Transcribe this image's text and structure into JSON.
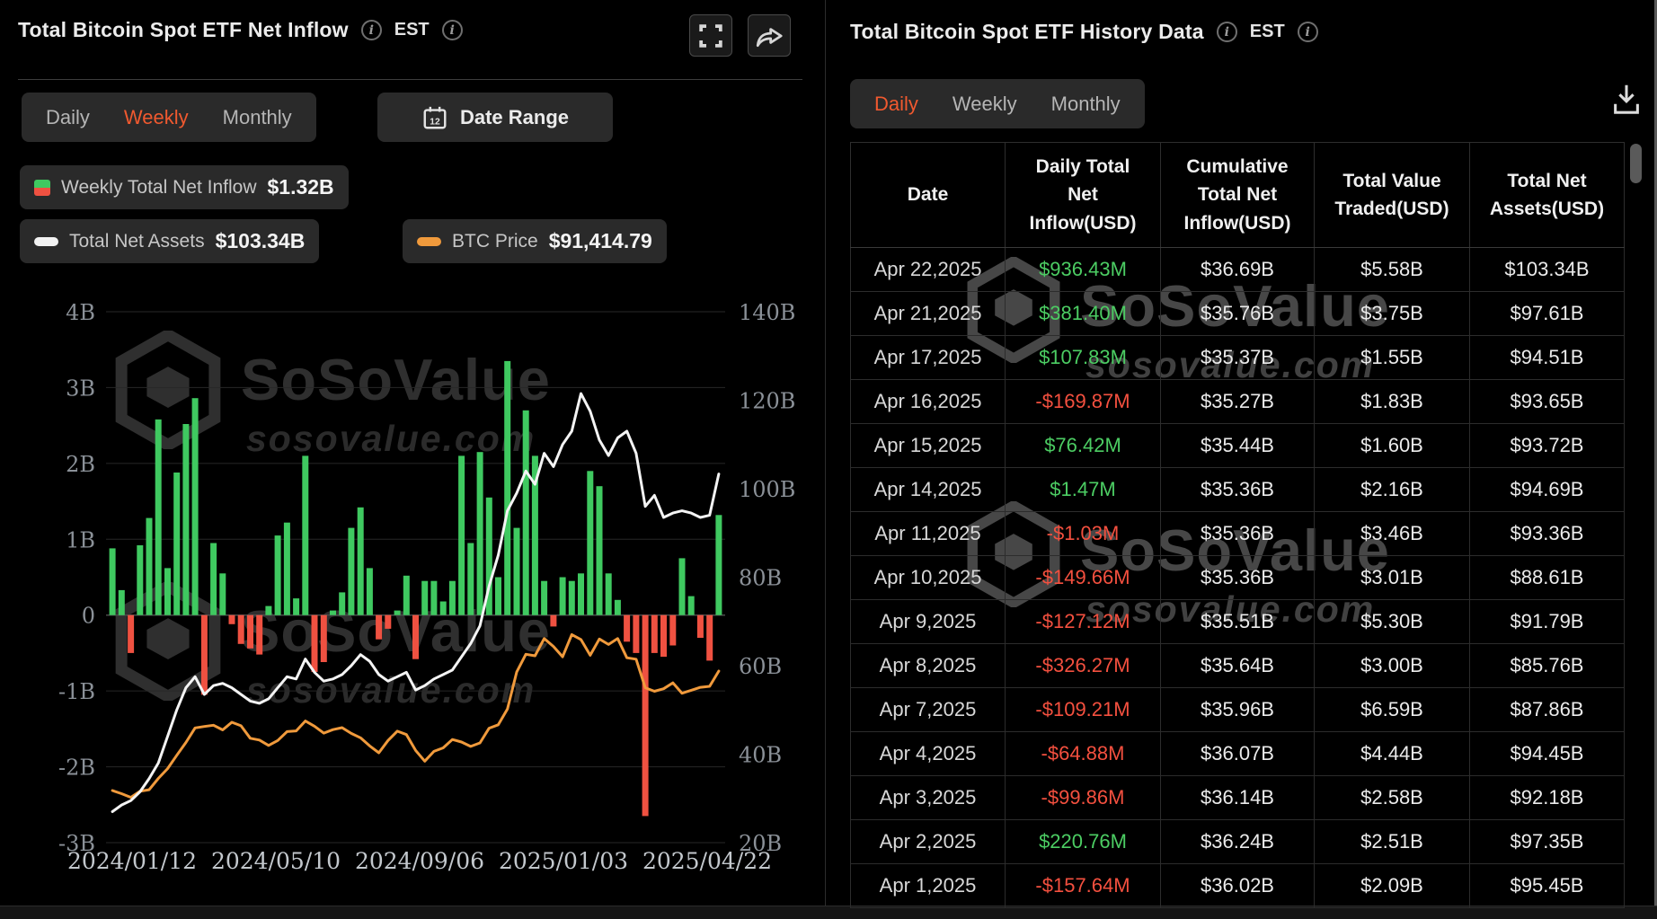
{
  "icons": {
    "info": "i"
  },
  "watermark": {
    "brand": "SoSoValue",
    "domain": "sosovalue.com"
  },
  "left_panel": {
    "title": "Total Bitcoin Spot ETF Net Inflow",
    "est_label": "EST",
    "tabs": [
      "Daily",
      "Weekly",
      "Monthly"
    ],
    "active_tab": "Weekly",
    "date_range_label": "Date Range",
    "legend": [
      {
        "label": "Weekly Total Net Inflow",
        "value": "$1.32B"
      },
      {
        "label": "Total Net Assets",
        "value": "$103.34B"
      },
      {
        "label": "BTC Price",
        "value": "$91,414.79"
      }
    ]
  },
  "chart_data": {
    "type": "bar",
    "title": "Total Bitcoin Spot ETF Net Inflow (weekly)",
    "x_labels": [
      "2024/01/12",
      "2024/05/10",
      "2024/09/06",
      "2025/01/03",
      "2025/04/22"
    ],
    "left_axis": {
      "unit": "USD B",
      "ticks": [
        "4B",
        "3B",
        "2B",
        "1B",
        "0",
        "-1B",
        "-2B",
        "-3B"
      ],
      "min": -3,
      "max": 4
    },
    "right_axis": {
      "unit": "USD B",
      "ticks": [
        "140B",
        "120B",
        "100B",
        "80B",
        "60B",
        "40B",
        "20B"
      ],
      "min": 20,
      "max": 140
    },
    "grid": true,
    "legend_position": "top-left",
    "series": [
      {
        "name": "Weekly Total Net Inflow",
        "type": "bar",
        "unit": "$B",
        "color_pos": "#3fc960",
        "color_neg": "#ef5141",
        "values": [
          0.88,
          0.33,
          -0.5,
          0.92,
          1.28,
          2.58,
          0.62,
          1.88,
          2.52,
          2.86,
          -1.05,
          0.95,
          0.55,
          -0.12,
          -0.38,
          -0.44,
          -0.52,
          0.12,
          1.05,
          1.22,
          0.22,
          2.1,
          -0.75,
          -0.62,
          0.06,
          0.3,
          1.15,
          1.42,
          0.62,
          -0.32,
          -0.18,
          0.06,
          0.52,
          -0.58,
          0.45,
          0.45,
          0.18,
          0.45,
          2.1,
          0.95,
          2.15,
          1.55,
          0.5,
          3.35,
          1.15,
          2.7,
          2.1,
          0.45,
          -0.15,
          0.5,
          0.45,
          0.55,
          1.9,
          1.7,
          0.55,
          0.2,
          -0.35,
          -0.5,
          -2.65,
          -0.5,
          -0.55,
          -0.4,
          0.75,
          0.25,
          -0.3,
          -0.6,
          1.32
        ]
      },
      {
        "name": "Total Net Assets",
        "type": "line",
        "unit": "$B (right axis)",
        "color": "#f4f4f4",
        "values": [
          27,
          28.5,
          29.5,
          31.5,
          34.5,
          38,
          44,
          50,
          55,
          57.5,
          53.5,
          55.5,
          56,
          55,
          53.5,
          52,
          51.5,
          52.5,
          55,
          57.5,
          57,
          61.5,
          58.5,
          56.5,
          57,
          58,
          60,
          62.5,
          61,
          58,
          56.5,
          57.5,
          58.5,
          54.5,
          55.5,
          57,
          58,
          59,
          62,
          65,
          69,
          78,
          85,
          95,
          99,
          104,
          101,
          108,
          105,
          110,
          113,
          121.5,
          117.5,
          111,
          107.5,
          111.5,
          113,
          108,
          96,
          98.5,
          93.5,
          94.5,
          95,
          94.5,
          93.5,
          94,
          103.34
        ]
      },
      {
        "name": "BTC Price",
        "type": "line",
        "unit": "$K (hidden axis)",
        "color": "#f09a3c",
        "values": [
          42.9,
          41.6,
          40.1,
          42.6,
          43.2,
          47.8,
          51.8,
          57.2,
          62.4,
          68.3,
          68.9,
          69.4,
          67.5,
          70.6,
          69.2,
          64.1,
          63.4,
          61.2,
          63.2,
          66.8,
          67.1,
          71.1,
          69,
          66.2,
          67.6,
          68.4,
          66.1,
          64.3,
          61,
          58.2,
          63.2,
          67,
          65.6,
          59.2,
          54.8,
          58.8,
          60.2,
          63.6,
          62.6,
          60.8,
          62.2,
          68.2,
          69.6,
          76,
          91,
          98.2,
          97.6,
          104.6,
          101.4,
          97.2,
          106.2,
          104.2,
          97.8,
          104.4,
          102.2,
          104.6,
          96.8,
          96.2,
          84.6,
          83.2,
          84.2,
          86.6,
          82.4,
          83.6,
          84.8,
          85.2,
          91.4
        ]
      }
    ]
  },
  "right_panel": {
    "title": "Total Bitcoin Spot ETF History Data",
    "est_label": "EST",
    "tabs": [
      "Daily",
      "Weekly",
      "Monthly"
    ],
    "active_tab": "Daily",
    "table": {
      "headers": [
        "Date",
        "Daily Total Net Inflow(USD)",
        "Cumulative Total Net Inflow(USD)",
        "Total Value Traded(USD)",
        "Total Net Assets(USD)"
      ],
      "rows": [
        {
          "date": "Apr 22,2025",
          "inflow": "$936.43M",
          "sign": "pos",
          "cumulative": "$36.69B",
          "traded": "$5.58B",
          "assets": "$103.34B"
        },
        {
          "date": "Apr 21,2025",
          "inflow": "$381.40M",
          "sign": "pos",
          "cumulative": "$35.76B",
          "traded": "$3.75B",
          "assets": "$97.61B"
        },
        {
          "date": "Apr 17,2025",
          "inflow": "$107.83M",
          "sign": "pos",
          "cumulative": "$35.37B",
          "traded": "$1.55B",
          "assets": "$94.51B"
        },
        {
          "date": "Apr 16,2025",
          "inflow": "-$169.87M",
          "sign": "neg",
          "cumulative": "$35.27B",
          "traded": "$1.83B",
          "assets": "$93.65B"
        },
        {
          "date": "Apr 15,2025",
          "inflow": "$76.42M",
          "sign": "pos",
          "cumulative": "$35.44B",
          "traded": "$1.60B",
          "assets": "$93.72B"
        },
        {
          "date": "Apr 14,2025",
          "inflow": "$1.47M",
          "sign": "pos",
          "cumulative": "$35.36B",
          "traded": "$2.16B",
          "assets": "$94.69B"
        },
        {
          "date": "Apr 11,2025",
          "inflow": "-$1.03M",
          "sign": "neg",
          "cumulative": "$35.36B",
          "traded": "$3.46B",
          "assets": "$93.36B"
        },
        {
          "date": "Apr 10,2025",
          "inflow": "-$149.66M",
          "sign": "neg",
          "cumulative": "$35.36B",
          "traded": "$3.01B",
          "assets": "$88.61B"
        },
        {
          "date": "Apr 9,2025",
          "inflow": "-$127.12M",
          "sign": "neg",
          "cumulative": "$35.51B",
          "traded": "$5.30B",
          "assets": "$91.79B"
        },
        {
          "date": "Apr 8,2025",
          "inflow": "-$326.27M",
          "sign": "neg",
          "cumulative": "$35.64B",
          "traded": "$3.00B",
          "assets": "$85.76B"
        },
        {
          "date": "Apr 7,2025",
          "inflow": "-$109.21M",
          "sign": "neg",
          "cumulative": "$35.96B",
          "traded": "$6.59B",
          "assets": "$87.86B"
        },
        {
          "date": "Apr 4,2025",
          "inflow": "-$64.88M",
          "sign": "neg",
          "cumulative": "$36.07B",
          "traded": "$4.44B",
          "assets": "$94.45B"
        },
        {
          "date": "Apr 3,2025",
          "inflow": "-$99.86M",
          "sign": "neg",
          "cumulative": "$36.14B",
          "traded": "$2.58B",
          "assets": "$92.18B"
        },
        {
          "date": "Apr 2,2025",
          "inflow": "$220.76M",
          "sign": "pos",
          "cumulative": "$36.24B",
          "traded": "$2.51B",
          "assets": "$97.35B"
        },
        {
          "date": "Apr 1,2025",
          "inflow": "-$157.64M",
          "sign": "neg",
          "cumulative": "$36.02B",
          "traded": "$2.09B",
          "assets": "$95.45B"
        }
      ]
    }
  }
}
